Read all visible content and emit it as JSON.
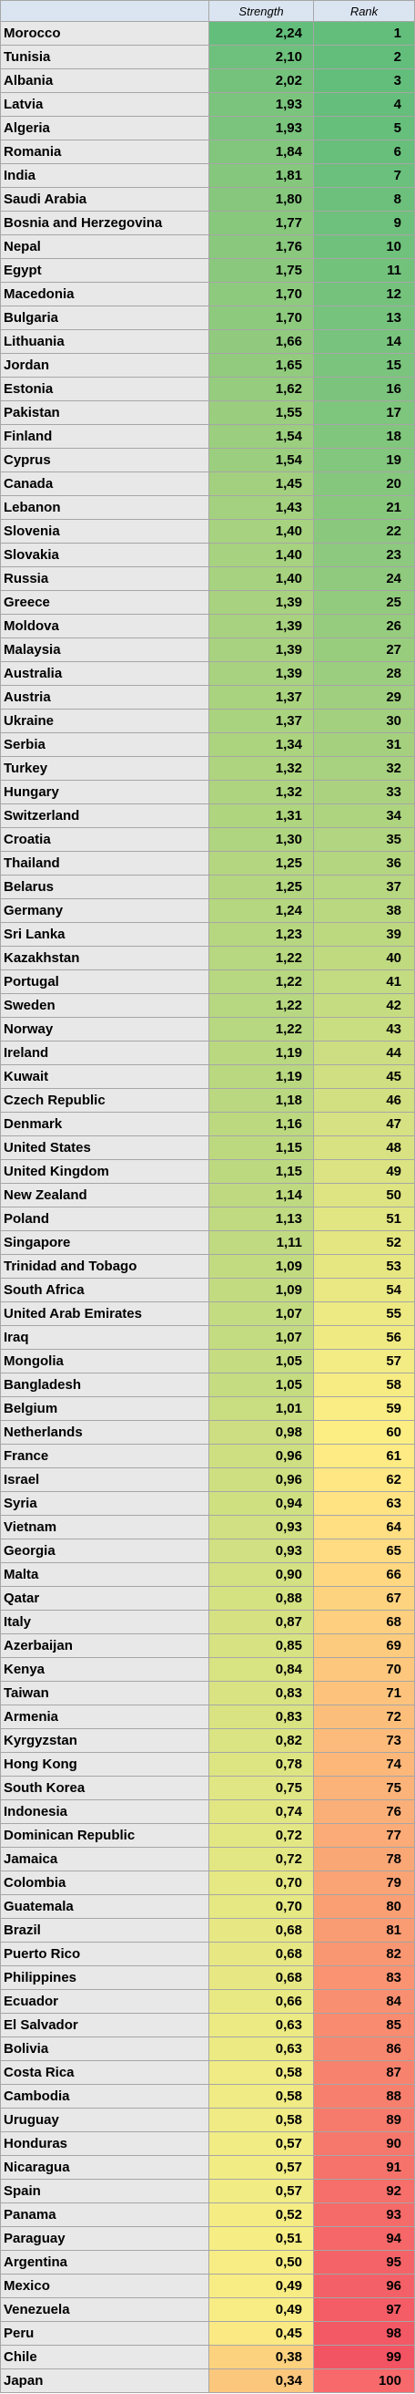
{
  "table": {
    "headers": [
      "",
      "Strength",
      "Rank"
    ],
    "rows": [
      {
        "country": "Morocco",
        "strength": "2,24",
        "rank": "1",
        "strength_color": "#63be7b",
        "rank_color": "#63be7b"
      },
      {
        "country": "Tunisia",
        "strength": "2,10",
        "rank": "2",
        "strength_color": "#6ec17c",
        "rank_color": "#63be7b"
      },
      {
        "country": "Albania",
        "strength": "2,02",
        "rank": "3",
        "strength_color": "#74c27c",
        "rank_color": "#64be7b"
      },
      {
        "country": "Latvia",
        "strength": "1,93",
        "rank": "4",
        "strength_color": "#7bc47d",
        "rank_color": "#65be7b"
      },
      {
        "country": "Algeria",
        "strength": "1,93",
        "rank": "5",
        "strength_color": "#7bc47d",
        "rank_color": "#66bf7b"
      },
      {
        "country": "Romania",
        "strength": "1,84",
        "rank": "6",
        "strength_color": "#82c67d",
        "rank_color": "#68bf7b"
      },
      {
        "country": "India",
        "strength": "1,81",
        "rank": "7",
        "strength_color": "#85c77d",
        "rank_color": "#6ac07c"
      },
      {
        "country": "Saudi Arabia",
        "strength": "1,80",
        "rank": "8",
        "strength_color": "#86c77d",
        "rank_color": "#6cc07c"
      },
      {
        "country": "Bosnia and Herzegovina",
        "strength": "1,77",
        "rank": "9",
        "strength_color": "#88c87d",
        "rank_color": "#6ec17c"
      },
      {
        "country": "Nepal",
        "strength": "1,76",
        "rank": "10",
        "strength_color": "#89c87d",
        "rank_color": "#70c17c"
      },
      {
        "country": "Egypt",
        "strength": "1,75",
        "rank": "11",
        "strength_color": "#8ac87d",
        "rank_color": "#72c27c"
      },
      {
        "country": "Macedonia",
        "strength": "1,70",
        "rank": "12",
        "strength_color": "#8eca7e",
        "rank_color": "#74c27c"
      },
      {
        "country": "Bulgaria",
        "strength": "1,70",
        "rank": "13",
        "strength_color": "#8eca7e",
        "rank_color": "#76c37d"
      },
      {
        "country": "Lithuania",
        "strength": "1,66",
        "rank": "14",
        "strength_color": "#91ca7e",
        "rank_color": "#78c37d"
      },
      {
        "country": "Jordan",
        "strength": "1,65",
        "rank": "15",
        "strength_color": "#92cb7e",
        "rank_color": "#7ac47d"
      },
      {
        "country": "Estonia",
        "strength": "1,62",
        "rank": "16",
        "strength_color": "#95cc7e",
        "rank_color": "#7cc47d"
      },
      {
        "country": "Pakistan",
        "strength": "1,55",
        "rank": "17",
        "strength_color": "#9ace7e",
        "rank_color": "#7ec57d"
      },
      {
        "country": "Finland",
        "strength": "1,54",
        "rank": "18",
        "strength_color": "#9bce7e",
        "rank_color": "#81c67d"
      },
      {
        "country": "Cyprus",
        "strength": "1,54",
        "rank": "19",
        "strength_color": "#9bce7e",
        "rank_color": "#83c67d"
      },
      {
        "country": "Canada",
        "strength": "1,45",
        "rank": "20",
        "strength_color": "#a3d07f",
        "rank_color": "#85c77d"
      },
      {
        "country": "Lebanon",
        "strength": "1,43",
        "rank": "21",
        "strength_color": "#a4d17f",
        "rank_color": "#88c87d"
      },
      {
        "country": "Slovenia",
        "strength": "1,40",
        "rank": "22",
        "strength_color": "#a7d27f",
        "rank_color": "#8ac87d"
      },
      {
        "country": "Slovakia",
        "strength": "1,40",
        "rank": "23",
        "strength_color": "#a7d27f",
        "rank_color": "#8dc97e"
      },
      {
        "country": "Russia",
        "strength": "1,40",
        "rank": "24",
        "strength_color": "#a7d27f",
        "rank_color": "#90ca7e"
      },
      {
        "country": "Greece",
        "strength": "1,39",
        "rank": "25",
        "strength_color": "#a8d27f",
        "rank_color": "#93cb7e"
      },
      {
        "country": "Moldova",
        "strength": "1,39",
        "rank": "26",
        "strength_color": "#a8d27f",
        "rank_color": "#96cc7e"
      },
      {
        "country": "Malaysia",
        "strength": "1,39",
        "rank": "27",
        "strength_color": "#a8d27f",
        "rank_color": "#99cd7e"
      },
      {
        "country": "Australia",
        "strength": "1,39",
        "rank": "28",
        "strength_color": "#a8d27f",
        "rank_color": "#9cce7f"
      },
      {
        "country": "Austria",
        "strength": "1,37",
        "rank": "29",
        "strength_color": "#aad37f",
        "rank_color": "#9fcf7f"
      },
      {
        "country": "Ukraine",
        "strength": "1,37",
        "rank": "30",
        "strength_color": "#aad37f",
        "rank_color": "#a2d07f"
      },
      {
        "country": "Serbia",
        "strength": "1,34",
        "rank": "31",
        "strength_color": "#acd47f",
        "rank_color": "#a5d17f"
      },
      {
        "country": "Turkey",
        "strength": "1,32",
        "rank": "32",
        "strength_color": "#aed47f",
        "rank_color": "#a8d27f"
      },
      {
        "country": "Hungary",
        "strength": "1,32",
        "rank": "33",
        "strength_color": "#aed47f",
        "rank_color": "#abd37f"
      },
      {
        "country": "Switzerland",
        "strength": "1,31",
        "rank": "34",
        "strength_color": "#afd57f",
        "rank_color": "#aed480"
      },
      {
        "country": "Croatia",
        "strength": "1,30",
        "rank": "35",
        "strength_color": "#b0d580",
        "rank_color": "#b1d580"
      },
      {
        "country": "Thailand",
        "strength": "1,25",
        "rank": "36",
        "strength_color": "#b4d680",
        "rank_color": "#b4d680"
      },
      {
        "country": "Belarus",
        "strength": "1,25",
        "rank": "37",
        "strength_color": "#b4d680",
        "rank_color": "#b7d780"
      },
      {
        "country": "Germany",
        "strength": "1,24",
        "rank": "38",
        "strength_color": "#b5d780",
        "rank_color": "#bad880"
      },
      {
        "country": "Sri Lanka",
        "strength": "1,23",
        "rank": "39",
        "strength_color": "#b6d780",
        "rank_color": "#bdd980"
      },
      {
        "country": "Kazakhstan",
        "strength": "1,22",
        "rank": "40",
        "strength_color": "#b7d780",
        "rank_color": "#c0da80"
      },
      {
        "country": "Portugal",
        "strength": "1,22",
        "rank": "41",
        "strength_color": "#b7d780",
        "rank_color": "#c3db81"
      },
      {
        "country": "Sweden",
        "strength": "1,22",
        "rank": "42",
        "strength_color": "#b7d780",
        "rank_color": "#c6dc81"
      },
      {
        "country": "Norway",
        "strength": "1,22",
        "rank": "43",
        "strength_color": "#b7d780",
        "rank_color": "#c9dd81"
      },
      {
        "country": "Ireland",
        "strength": "1,19",
        "rank": "44",
        "strength_color": "#b9d880",
        "rank_color": "#ccde81"
      },
      {
        "country": "Kuwait",
        "strength": "1,19",
        "rank": "45",
        "strength_color": "#b9d880",
        "rank_color": "#cfdf81"
      },
      {
        "country": "Czech Republic",
        "strength": "1,18",
        "rank": "46",
        "strength_color": "#bad880",
        "rank_color": "#d2e081"
      },
      {
        "country": "Denmark",
        "strength": "1,16",
        "rank": "47",
        "strength_color": "#bcd980",
        "rank_color": "#d5e182"
      },
      {
        "country": "United States",
        "strength": "1,15",
        "rank": "48",
        "strength_color": "#bdd980",
        "rank_color": "#d8e282"
      },
      {
        "country": "United Kingdom",
        "strength": "1,15",
        "rank": "49",
        "strength_color": "#bdd980",
        "rank_color": "#dbe382"
      },
      {
        "country": "New Zealand",
        "strength": "1,14",
        "rank": "50",
        "strength_color": "#bed980",
        "rank_color": "#dee482"
      },
      {
        "country": "Poland",
        "strength": "1,13",
        "rank": "51",
        "strength_color": "#bfda80",
        "rank_color": "#e1e582"
      },
      {
        "country": "Singapore",
        "strength": "1,11",
        "rank": "52",
        "strength_color": "#c0da81",
        "rank_color": "#e4e682"
      },
      {
        "country": "Trinidad and Tobago",
        "strength": "1,09",
        "rank": "53",
        "strength_color": "#c2db81",
        "rank_color": "#e7e782"
      },
      {
        "country": "South Africa",
        "strength": "1,09",
        "rank": "54",
        "strength_color": "#c2db81",
        "rank_color": "#eae883"
      },
      {
        "country": "United Arab Emirates",
        "strength": "1,07",
        "rank": "55",
        "strength_color": "#c4dc81",
        "rank_color": "#ede983"
      },
      {
        "country": "Iraq",
        "strength": "1,07",
        "rank": "56",
        "strength_color": "#c4dc81",
        "rank_color": "#f0ea83"
      },
      {
        "country": "Mongolia",
        "strength": "1,05",
        "rank": "57",
        "strength_color": "#c6dc81",
        "rank_color": "#f3eb83"
      },
      {
        "country": "Bangladesh",
        "strength": "1,05",
        "rank": "58",
        "strength_color": "#c6dc81",
        "rank_color": "#f6ec83"
      },
      {
        "country": "Belgium",
        "strength": "1,01",
        "rank": "59",
        "strength_color": "#c9dd81",
        "rank_color": "#f9ed83"
      },
      {
        "country": "Netherlands",
        "strength": "0,98",
        "rank": "60",
        "strength_color": "#ccde81",
        "rank_color": "#fcee83"
      },
      {
        "country": "France",
        "strength": "0,96",
        "rank": "61",
        "strength_color": "#cedf81",
        "rank_color": "#ffeb84"
      },
      {
        "country": "Israel",
        "strength": "0,96",
        "rank": "62",
        "strength_color": "#cedf81",
        "rank_color": "#ffe783"
      },
      {
        "country": "Syria",
        "strength": "0,94",
        "rank": "63",
        "strength_color": "#cfe081",
        "rank_color": "#ffe383"
      },
      {
        "country": "Vietnam",
        "strength": "0,93",
        "rank": "64",
        "strength_color": "#d0e082",
        "rank_color": "#ffdf82"
      },
      {
        "country": "Georgia",
        "strength": "0,93",
        "rank": "65",
        "strength_color": "#d0e082",
        "rank_color": "#ffdb81"
      },
      {
        "country": "Malta",
        "strength": "0,90",
        "rank": "66",
        "strength_color": "#d3e182",
        "rank_color": "#fed780"
      },
      {
        "country": "Qatar",
        "strength": "0,88",
        "rank": "67",
        "strength_color": "#d5e282",
        "rank_color": "#fed37f"
      },
      {
        "country": "Italy",
        "strength": "0,87",
        "rank": "68",
        "strength_color": "#d6e282",
        "rank_color": "#fecf7f"
      },
      {
        "country": "Azerbaijan",
        "strength": "0,85",
        "rank": "69",
        "strength_color": "#d7e382",
        "rank_color": "#fdcb7e"
      },
      {
        "country": "Kenya",
        "strength": "0,84",
        "rank": "70",
        "strength_color": "#d8e382",
        "rank_color": "#fdc77d"
      },
      {
        "country": "Taiwan",
        "strength": "0,83",
        "rank": "71",
        "strength_color": "#d9e382",
        "rank_color": "#fdc37c"
      },
      {
        "country": "Armenia",
        "strength": "0,83",
        "rank": "72",
        "strength_color": "#d9e382",
        "rank_color": "#fcbf7b"
      },
      {
        "country": "Kyrgyzstan",
        "strength": "0,82",
        "rank": "73",
        "strength_color": "#dae482",
        "rank_color": "#fcbb7a"
      },
      {
        "country": "Hong Kong",
        "strength": "0,78",
        "rank": "74",
        "strength_color": "#dde582",
        "rank_color": "#fcb779"
      },
      {
        "country": "South Korea",
        "strength": "0,75",
        "rank": "75",
        "strength_color": "#e0e683",
        "rank_color": "#fbb379"
      },
      {
        "country": "Indonesia",
        "strength": "0,74",
        "rank": "76",
        "strength_color": "#e1e683",
        "rank_color": "#fbaf78"
      },
      {
        "country": "Dominican Republic",
        "strength": "0,72",
        "rank": "77",
        "strength_color": "#e3e783",
        "rank_color": "#fbab77"
      },
      {
        "country": "Jamaica",
        "strength": "0,72",
        "rank": "78",
        "strength_color": "#e3e783",
        "rank_color": "#faa776"
      },
      {
        "country": "Colombia",
        "strength": "0,70",
        "rank": "79",
        "strength_color": "#e5e883",
        "rank_color": "#faa375"
      },
      {
        "country": "Guatemala",
        "strength": "0,70",
        "rank": "80",
        "strength_color": "#e5e883",
        "rank_color": "#fa9f74"
      },
      {
        "country": "Brazil",
        "strength": "0,68",
        "rank": "81",
        "strength_color": "#e7e883",
        "rank_color": "#f99b73"
      },
      {
        "country": "Puerto Rico",
        "strength": "0,68",
        "rank": "82",
        "strength_color": "#e7e883",
        "rank_color": "#f99773"
      },
      {
        "country": "Philippines",
        "strength": "0,68",
        "rank": "83",
        "strength_color": "#e7e883",
        "rank_color": "#f99372"
      },
      {
        "country": "Ecuador",
        "strength": "0,66",
        "rank": "84",
        "strength_color": "#e9e983",
        "rank_color": "#f88f71"
      },
      {
        "country": "El Salvador",
        "strength": "0,63",
        "rank": "85",
        "strength_color": "#ebea83",
        "rank_color": "#f88b70"
      },
      {
        "country": "Bolivia",
        "strength": "0,63",
        "rank": "86",
        "strength_color": "#ebea83",
        "rank_color": "#f8876f"
      },
      {
        "country": "Costa Rica",
        "strength": "0,58",
        "rank": "87",
        "strength_color": "#f0eb84",
        "rank_color": "#f7836e"
      },
      {
        "country": "Cambodia",
        "strength": "0,58",
        "rank": "88",
        "strength_color": "#f0eb84",
        "rank_color": "#f77f6d"
      },
      {
        "country": "Uruguay",
        "strength": "0,58",
        "rank": "89",
        "strength_color": "#f0eb84",
        "rank_color": "#f77b6d"
      },
      {
        "country": "Honduras",
        "strength": "0,57",
        "rank": "90",
        "strength_color": "#f1ec84",
        "rank_color": "#f6776c"
      },
      {
        "country": "Nicaragua",
        "strength": "0,57",
        "rank": "91",
        "strength_color": "#f1ec84",
        "rank_color": "#f6736b"
      },
      {
        "country": "Spain",
        "strength": "0,57",
        "rank": "92",
        "strength_color": "#f1ec84",
        "rank_color": "#f66f6a"
      },
      {
        "country": "Panama",
        "strength": "0,52",
        "rank": "93",
        "strength_color": "#f5ed84",
        "rank_color": "#f56b69"
      },
      {
        "country": "Paraguay",
        "strength": "0,51",
        "rank": "94",
        "strength_color": "#f6ed84",
        "rank_color": "#f56768"
      },
      {
        "country": "Argentina",
        "strength": "0,50",
        "rank": "95",
        "strength_color": "#f7ed84",
        "rank_color": "#f46367"
      },
      {
        "country": "Mexico",
        "strength": "0,49",
        "rank": "96",
        "strength_color": "#f8ed84",
        "rank_color": "#f46067"
      },
      {
        "country": "Venezuela",
        "strength": "0,49",
        "rank": "97",
        "strength_color": "#f8ed84",
        "rank_color": "#f45c66"
      },
      {
        "country": "Peru",
        "strength": "0,45",
        "rank": "98",
        "strength_color": "#fbe983",
        "rank_color": "#f35865"
      },
      {
        "country": "Chile",
        "strength": "0,38",
        "rank": "99",
        "strength_color": "#fcd27f",
        "rank_color": "#f35464"
      },
      {
        "country": "Japan",
        "strength": "0,34",
        "rank": "100",
        "strength_color": "#fbc77d",
        "rank_color": "#f8696b"
      }
    ]
  },
  "colors": {
    "header_bg": "#dbe5f1",
    "country_bg": "#e8e8e8",
    "grid_line": "#a6a6a6"
  }
}
